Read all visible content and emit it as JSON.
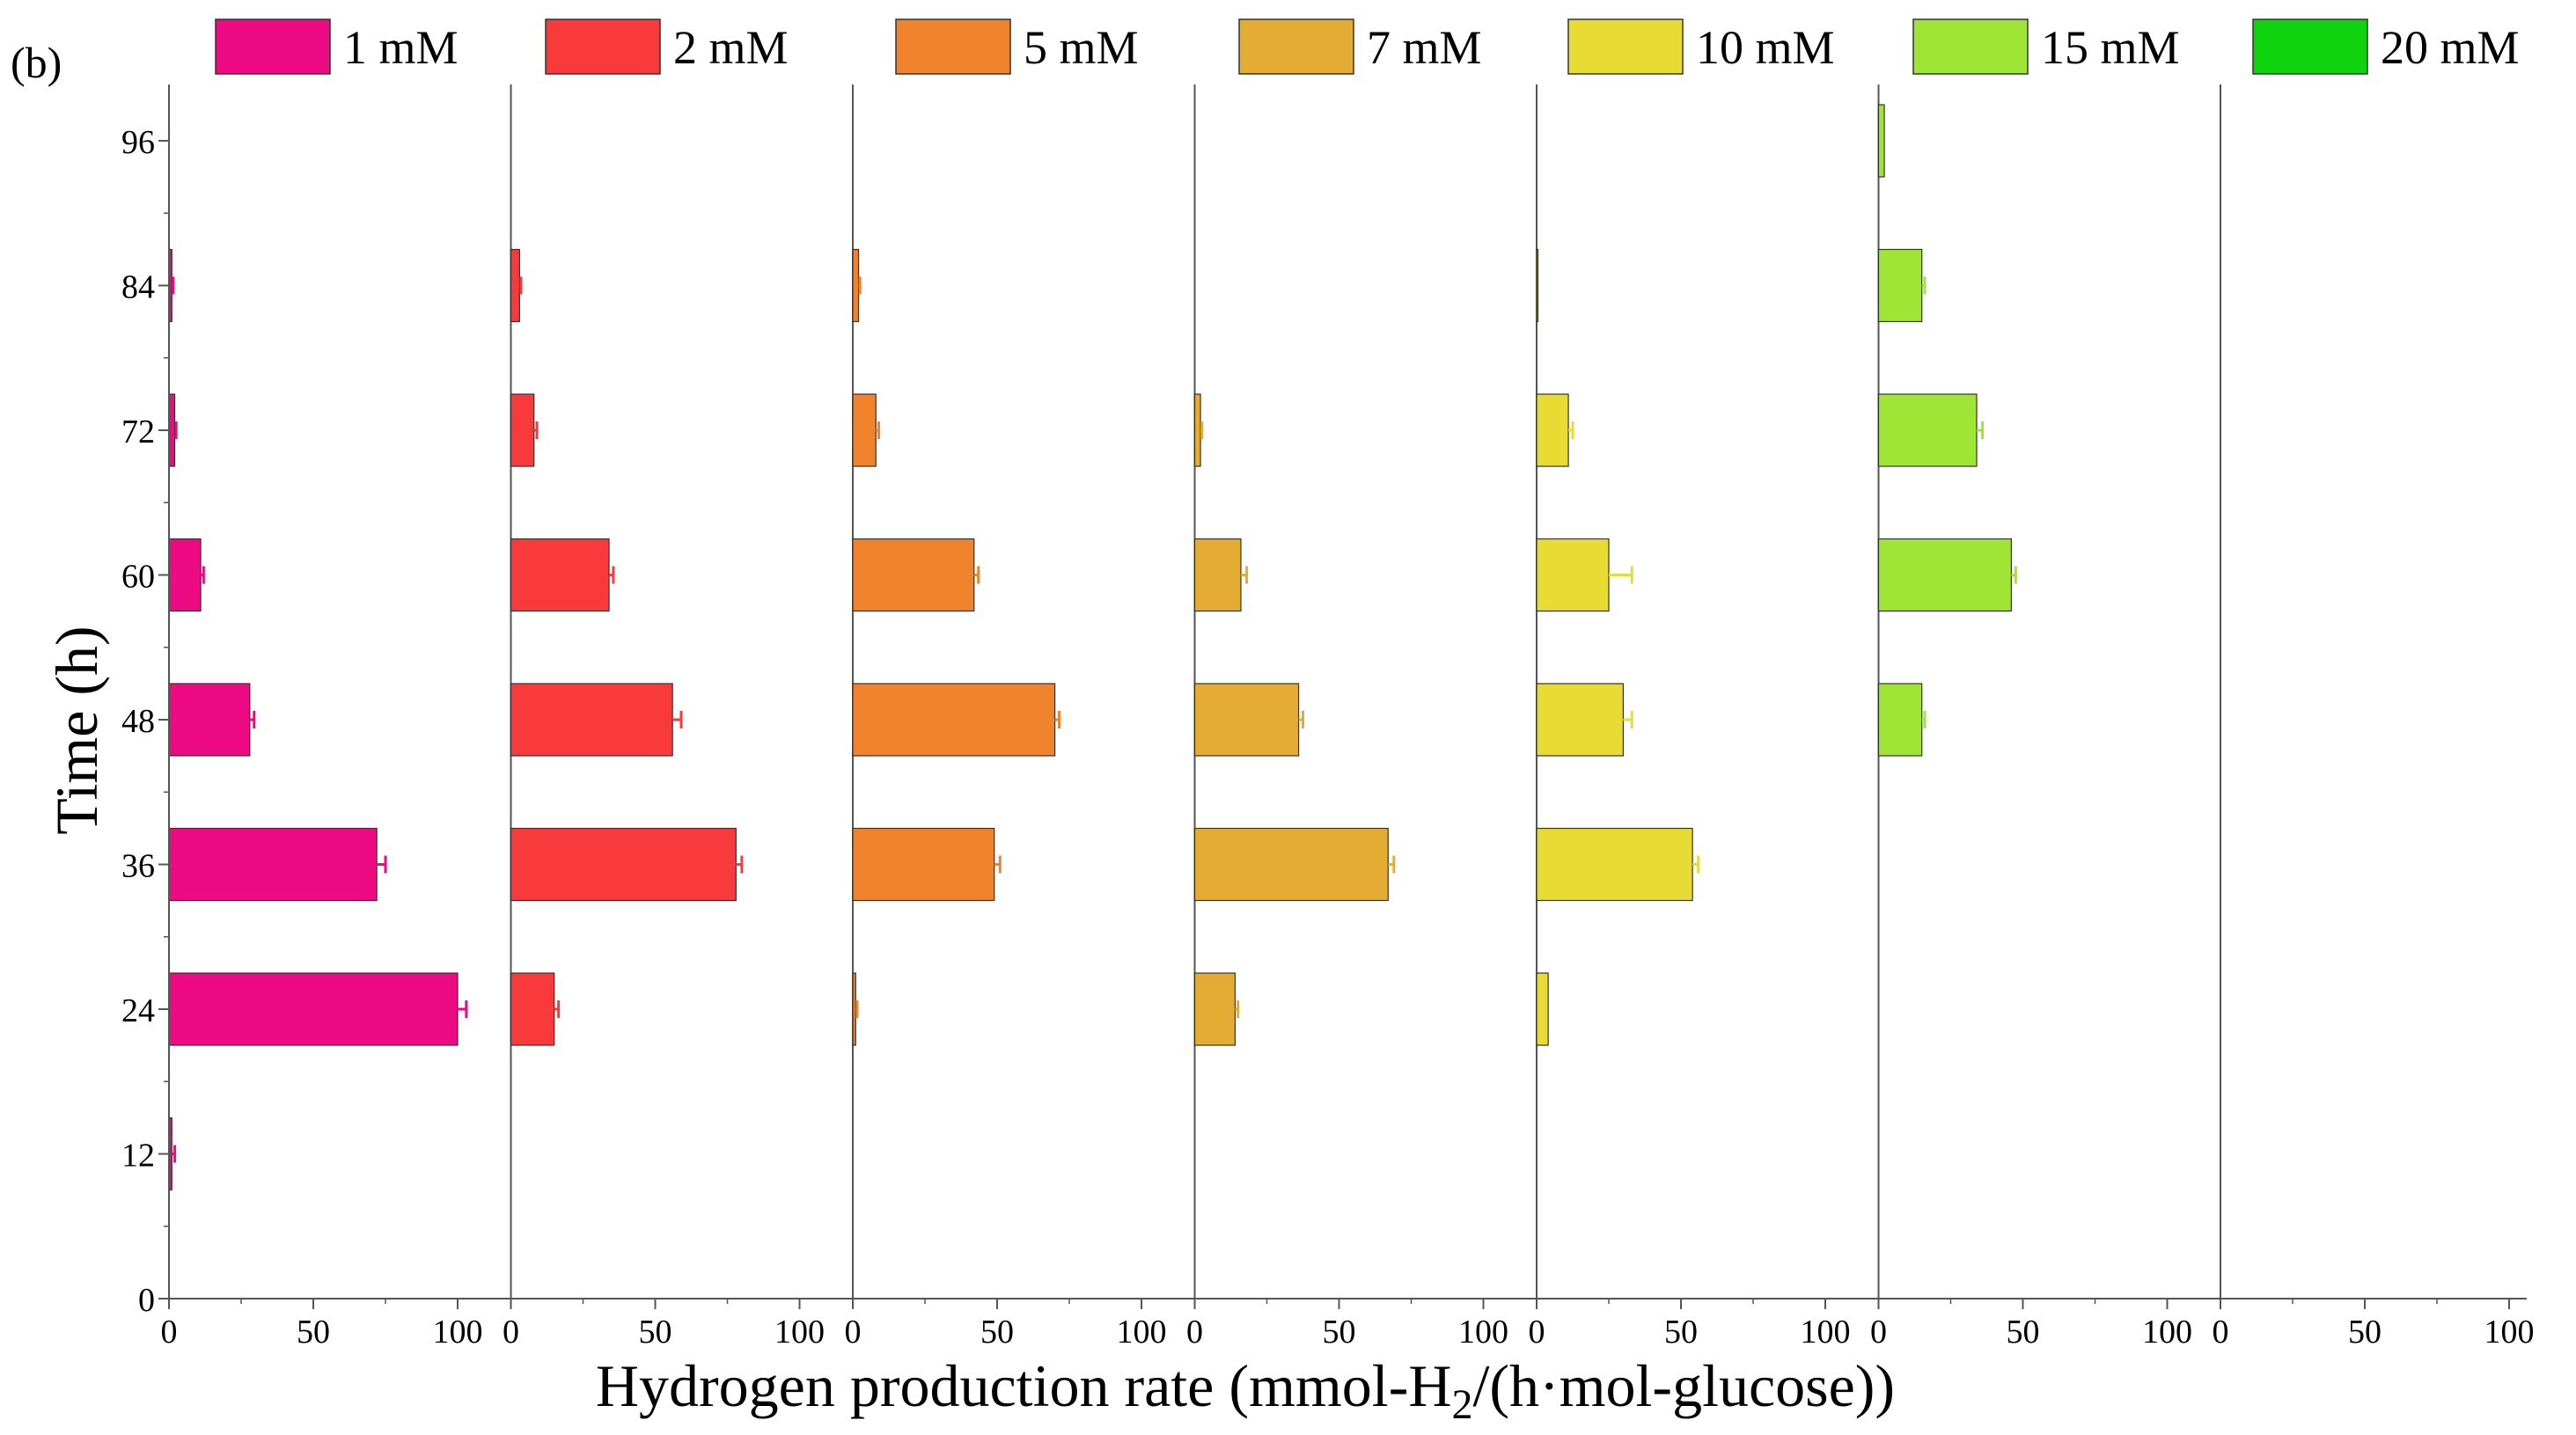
{
  "panel_label": "(b)",
  "colors": {
    "axis": "#555555",
    "bar_stroke": "#333333"
  },
  "chart_data": {
    "type": "bar",
    "orientation": "horizontal",
    "layout": "small-multiples",
    "xlabel_main": "Hydrogen production rate (mmol-H",
    "xlabel_sub": "2",
    "xlabel_tail": "/(h·mol-glucose))",
    "ylabel": "Time (h)",
    "x_ticks": [
      0,
      50,
      100
    ],
    "xlim": [
      0,
      100
    ],
    "y_ticks": [
      0,
      12,
      24,
      36,
      48,
      60,
      72,
      84,
      96
    ],
    "ylim": [
      0,
      96
    ],
    "legend_placement": "top",
    "series": [
      {
        "name": "1 mM",
        "color": "#ee0a82",
        "values": [
          {
            "t": 12,
            "v": 1,
            "err": 1
          },
          {
            "t": 24,
            "v": 100,
            "err": 3
          },
          {
            "t": 36,
            "v": 72,
            "err": 3
          },
          {
            "t": 48,
            "v": 28,
            "err": 1.5
          },
          {
            "t": 60,
            "v": 11,
            "err": 1
          },
          {
            "t": 72,
            "v": 2,
            "err": 0.5
          },
          {
            "t": 84,
            "v": 1,
            "err": 0.5
          }
        ]
      },
      {
        "name": "2 mM",
        "color": "#f83a3d",
        "values": [
          {
            "t": 24,
            "v": 15,
            "err": 1.5
          },
          {
            "t": 36,
            "v": 78,
            "err": 2
          },
          {
            "t": 48,
            "v": 56,
            "err": 3
          },
          {
            "t": 60,
            "v": 34,
            "err": 1.5
          },
          {
            "t": 72,
            "v": 8,
            "err": 1
          },
          {
            "t": 84,
            "v": 3,
            "err": 0.5
          }
        ]
      },
      {
        "name": "5 mM",
        "color": "#f0832c",
        "values": [
          {
            "t": 24,
            "v": 1,
            "err": 0.5
          },
          {
            "t": 36,
            "v": 49,
            "err": 2
          },
          {
            "t": 48,
            "v": 70,
            "err": 1.5
          },
          {
            "t": 60,
            "v": 42,
            "err": 1.5
          },
          {
            "t": 72,
            "v": 8,
            "err": 1
          },
          {
            "t": 84,
            "v": 2,
            "err": 0.5
          }
        ]
      },
      {
        "name": "7 mM",
        "color": "#e5ac33",
        "values": [
          {
            "t": 24,
            "v": 14,
            "err": 1
          },
          {
            "t": 36,
            "v": 67,
            "err": 2
          },
          {
            "t": 48,
            "v": 36,
            "err": 1.5
          },
          {
            "t": 60,
            "v": 16,
            "err": 2
          },
          {
            "t": 72,
            "v": 2,
            "err": 0.5
          }
        ]
      },
      {
        "name": "10 mM",
        "color": "#e8dc34",
        "values": [
          {
            "t": 24,
            "v": 4,
            "err": 0
          },
          {
            "t": 36,
            "v": 54,
            "err": 2
          },
          {
            "t": 48,
            "v": 30,
            "err": 3
          },
          {
            "t": 60,
            "v": 25,
            "err": 8
          },
          {
            "t": 72,
            "v": 11,
            "err": 1.5
          },
          {
            "t": 84,
            "v": 0.3,
            "err": 0
          }
        ]
      },
      {
        "name": "15 mM",
        "color": "#9fe536",
        "values": [
          {
            "t": 48,
            "v": 15,
            "err": 1
          },
          {
            "t": 60,
            "v": 46,
            "err": 1.5
          },
          {
            "t": 72,
            "v": 34,
            "err": 2
          },
          {
            "t": 84,
            "v": 15,
            "err": 1
          },
          {
            "t": 96,
            "v": 2,
            "err": 0
          }
        ]
      },
      {
        "name": "20 mM",
        "color": "#0ed20e",
        "values": []
      }
    ]
  }
}
